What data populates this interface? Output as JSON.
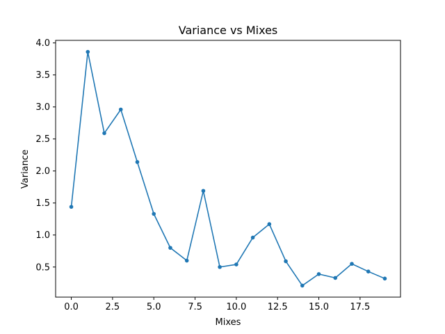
{
  "chart_data": {
    "type": "line",
    "title": "Variance vs Mixes",
    "xlabel": "Mixes",
    "ylabel": "Variance",
    "xlim": [
      -0.95,
      19.95
    ],
    "ylim": [
      0.03,
      4.04
    ],
    "xticks": [
      0.0,
      2.5,
      5.0,
      7.5,
      10.0,
      12.5,
      15.0,
      17.5
    ],
    "xtick_labels": [
      "0.0",
      "2.5",
      "5.0",
      "7.5",
      "10.0",
      "12.5",
      "15.0",
      "17.5"
    ],
    "yticks": [
      0.5,
      1.0,
      1.5,
      2.0,
      2.5,
      3.0,
      3.5,
      4.0
    ],
    "ytick_labels": [
      "0.5",
      "1.0",
      "1.5",
      "2.0",
      "2.5",
      "3.0",
      "3.5",
      "4.0"
    ],
    "grid": false,
    "series": [
      {
        "color": "#1f77b4",
        "marker": "circle",
        "x": [
          0,
          1,
          2,
          3,
          4,
          5,
          6,
          7,
          8,
          9,
          10,
          11,
          12,
          13,
          14,
          15,
          16,
          17,
          18,
          19
        ],
        "y": [
          1.44,
          3.86,
          2.59,
          2.96,
          2.14,
          1.33,
          0.8,
          0.6,
          1.69,
          0.5,
          0.54,
          0.96,
          1.17,
          0.59,
          0.21,
          0.39,
          0.33,
          0.55,
          0.43,
          0.32
        ]
      }
    ]
  }
}
